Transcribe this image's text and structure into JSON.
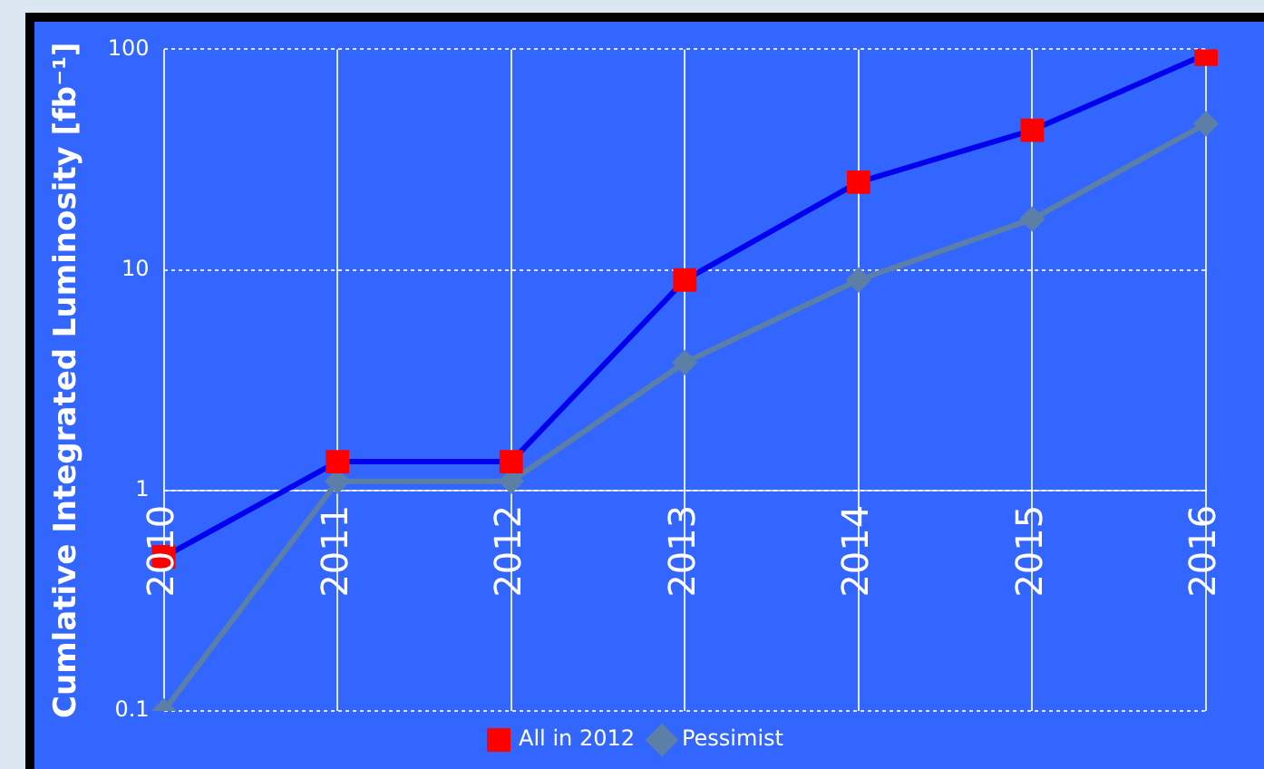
{
  "chart_data": {
    "type": "line",
    "ylabel": "Cumlative Integrated Luminosity [fb⁻¹]",
    "categories": [
      "2010",
      "2011",
      "2012",
      "2013",
      "2014",
      "2015",
      "2016"
    ],
    "series": [
      {
        "name": "All in 2012",
        "color": "#0000ee",
        "marker": "square",
        "colors": [
          "#ff0000",
          "#ff0000",
          "#ff0000",
          "#ff0000",
          "#ff0000",
          "#ff0000",
          "#ff0000"
        ],
        "values": [
          0.5,
          1.35,
          1.35,
          9,
          25,
          43,
          95
        ]
      },
      {
        "name": "Pessimist",
        "color": "#5b7fa6",
        "marker": "diamond",
        "values": [
          0.1,
          1.1,
          1.1,
          3.8,
          9,
          17,
          46
        ]
      }
    ],
    "log": "y",
    "ylim": [
      0.1,
      100
    ],
    "yticks": [
      0.1,
      1,
      10,
      100
    ],
    "grid": true,
    "legend": "bottom"
  }
}
